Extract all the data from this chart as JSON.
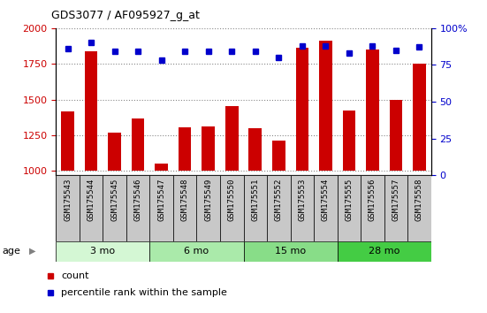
{
  "title": "GDS3077 / AF095927_g_at",
  "samples": [
    "GSM175543",
    "GSM175544",
    "GSM175545",
    "GSM175546",
    "GSM175547",
    "GSM175548",
    "GSM175549",
    "GSM175550",
    "GSM175551",
    "GSM175552",
    "GSM175553",
    "GSM175554",
    "GSM175555",
    "GSM175556",
    "GSM175557",
    "GSM175558"
  ],
  "counts": [
    1420,
    1840,
    1270,
    1370,
    1050,
    1305,
    1315,
    1455,
    1300,
    1210,
    1860,
    1910,
    1425,
    1850,
    1500,
    1750
  ],
  "percentile_ranks": [
    86,
    90,
    84,
    84,
    78,
    84,
    84,
    84,
    84,
    80,
    88,
    88,
    83,
    88,
    85,
    87
  ],
  "ylim_left": [
    970,
    2000
  ],
  "ylim_right": [
    0,
    100
  ],
  "yticks_left": [
    1000,
    1250,
    1500,
    1750,
    2000
  ],
  "yticks_right": [
    0,
    25,
    50,
    75,
    100
  ],
  "age_groups": [
    {
      "label": "3 mo",
      "start": 0,
      "end": 4,
      "color": "#d4f7d4"
    },
    {
      "label": "6 mo",
      "start": 4,
      "end": 8,
      "color": "#aaeaaa"
    },
    {
      "label": "15 mo",
      "start": 8,
      "end": 12,
      "color": "#88dd88"
    },
    {
      "label": "28 mo",
      "start": 12,
      "end": 16,
      "color": "#44cc44"
    }
  ],
  "bar_color": "#cc0000",
  "dot_color": "#0000cc",
  "grid_color": "#888888",
  "tick_label_bg": "#c8c8c8",
  "legend_items": [
    "count",
    "percentile rank within the sample"
  ],
  "legend_colors": [
    "#cc0000",
    "#0000cc"
  ]
}
